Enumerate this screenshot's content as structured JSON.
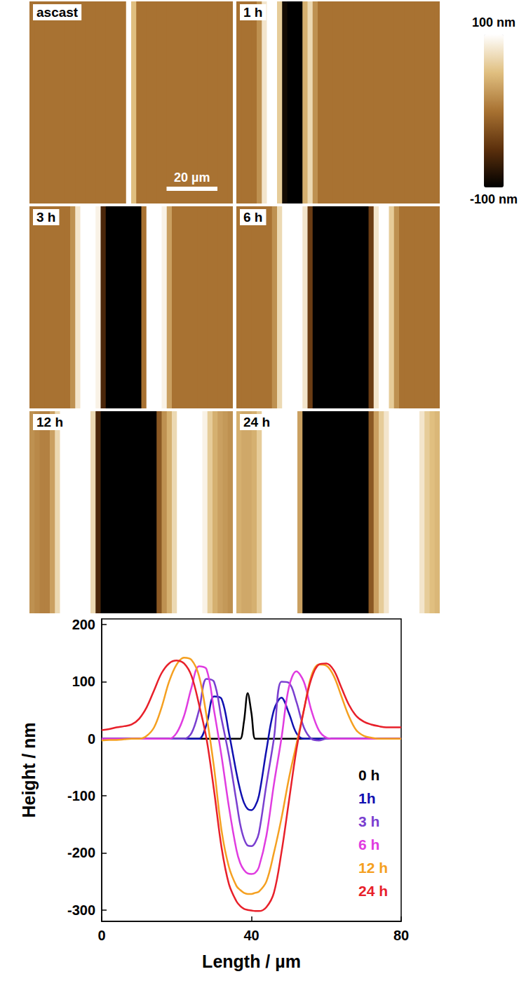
{
  "colorbar": {
    "range": [
      -100,
      100
    ],
    "ticks": [
      {
        "value": -100,
        "label": "-100 nm"
      },
      {
        "value": 100,
        "label": "100 nm"
      }
    ]
  },
  "chart_data": [
    {
      "type": "heatmap",
      "title": "ascast",
      "tick_labels": false,
      "xlim": [
        0,
        80
      ],
      "scale_bar": {
        "length": 20,
        "label": "20 µm"
      },
      "x": [
        1,
        3,
        5,
        7,
        9,
        11,
        13,
        15,
        17,
        19,
        21,
        23,
        25,
        27,
        29,
        31,
        33,
        35,
        37,
        39,
        41,
        43,
        45,
        47,
        49,
        51,
        53,
        55,
        57,
        59,
        61,
        63,
        65,
        67,
        69,
        71,
        73,
        75,
        77,
        79
      ],
      "values": [
        0,
        0,
        0,
        0,
        0,
        0,
        0,
        0,
        0,
        0,
        0,
        0,
        0,
        0,
        0,
        0,
        0,
        0,
        0,
        110,
        50,
        0,
        0,
        0,
        0,
        0,
        0,
        0,
        0,
        0,
        0,
        0,
        0,
        0,
        0,
        0,
        0,
        0,
        0,
        0
      ]
    },
    {
      "type": "heatmap",
      "title": "1 h",
      "tick_labels": false,
      "xlim": [
        0,
        80
      ],
      "x": [
        1,
        3,
        5,
        7,
        9,
        11,
        13,
        15,
        17,
        19,
        21,
        23,
        25,
        27,
        29,
        31,
        33,
        35,
        37,
        39,
        41,
        43,
        45,
        47,
        49,
        51,
        53,
        55,
        57,
        59,
        61,
        63,
        65,
        67,
        69,
        71,
        73,
        75,
        77,
        79
      ],
      "values": [
        0,
        0,
        0,
        0,
        20,
        80,
        100,
        100,
        60,
        -90,
        -125,
        -125,
        -100,
        40,
        70,
        20,
        0,
        0,
        0,
        0,
        0,
        0,
        0,
        0,
        0,
        0,
        0,
        0,
        0,
        0,
        0,
        0,
        0,
        0,
        0,
        0,
        0,
        0,
        0,
        0
      ]
    },
    {
      "type": "heatmap",
      "title": "3 h",
      "tick_labels": false,
      "xlim": [
        0,
        80
      ],
      "x": [
        1,
        3,
        5,
        7,
        9,
        11,
        13,
        15,
        17,
        19,
        21,
        23,
        25,
        27,
        29,
        31,
        33,
        35,
        37,
        39,
        41,
        43,
        45,
        47,
        49,
        51,
        53,
        55,
        57,
        59,
        61,
        63,
        65,
        67,
        69,
        71,
        73,
        75,
        77,
        79
      ],
      "values": [
        0,
        0,
        0,
        0,
        0,
        0,
        0,
        0,
        20,
        80,
        110,
        110,
        110,
        90,
        -60,
        -170,
        -190,
        -190,
        -190,
        -180,
        -170,
        -120,
        0,
        100,
        110,
        110,
        90,
        30,
        0,
        0,
        0,
        0,
        0,
        0,
        0,
        0,
        0,
        0,
        0,
        0
      ]
    },
    {
      "type": "heatmap",
      "title": "6 h",
      "tick_labels": false,
      "xlim": [
        0,
        80
      ],
      "x": [
        1,
        3,
        5,
        7,
        9,
        11,
        13,
        15,
        17,
        19,
        21,
        23,
        25,
        27,
        29,
        31,
        33,
        35,
        37,
        39,
        41,
        43,
        45,
        47,
        49,
        51,
        53,
        55,
        57,
        59,
        61,
        63,
        65,
        67,
        69,
        71,
        73,
        75,
        77,
        79
      ],
      "values": [
        0,
        0,
        0,
        0,
        0,
        0,
        0,
        20,
        70,
        110,
        125,
        125,
        120,
        80,
        -40,
        -150,
        -220,
        -235,
        -235,
        -235,
        -235,
        -235,
        -235,
        -235,
        -220,
        -150,
        -40,
        80,
        115,
        110,
        60,
        20,
        0,
        0,
        0,
        0,
        0,
        0,
        0,
        0
      ]
    },
    {
      "type": "heatmap",
      "title": "12 h",
      "tick_labels": false,
      "xlim": [
        0,
        80
      ],
      "x": [
        1,
        3,
        5,
        7,
        9,
        11,
        13,
        15,
        17,
        19,
        21,
        23,
        25,
        27,
        29,
        31,
        33,
        35,
        37,
        39,
        41,
        43,
        45,
        47,
        49,
        51,
        53,
        55,
        57,
        59,
        61,
        63,
        65,
        67,
        69,
        71,
        73,
        75,
        77,
        79
      ],
      "values": [
        20,
        15,
        10,
        10,
        30,
        70,
        110,
        140,
        140,
        140,
        135,
        120,
        70,
        -60,
        -200,
        -260,
        -270,
        -270,
        -270,
        -270,
        -270,
        -270,
        -270,
        -240,
        -120,
        -20,
        20,
        40,
        70,
        110,
        130,
        130,
        125,
        110,
        90,
        60,
        40,
        30,
        25,
        20
      ]
    },
    {
      "type": "heatmap",
      "title": "24 h",
      "tick_labels": false,
      "xlim": [
        0,
        80
      ],
      "x": [
        1,
        3,
        5,
        7,
        9,
        11,
        13,
        15,
        17,
        19,
        21,
        23,
        25,
        27,
        29,
        31,
        33,
        35,
        37,
        39,
        41,
        43,
        45,
        47,
        49,
        51,
        53,
        55,
        57,
        59,
        61,
        63,
        65,
        67,
        69,
        71,
        73,
        75,
        77,
        79
      ],
      "values": [
        40,
        35,
        35,
        40,
        60,
        100,
        135,
        140,
        140,
        140,
        135,
        110,
        30,
        -120,
        -260,
        -300,
        -300,
        -300,
        -300,
        -300,
        -300,
        -300,
        -300,
        -300,
        -250,
        -120,
        -20,
        30,
        60,
        80,
        100,
        120,
        135,
        135,
        130,
        110,
        80,
        60,
        50,
        45
      ]
    },
    {
      "type": "line",
      "xlabel": "Length / µm",
      "ylabel": "Height / nm",
      "xlim": [
        0,
        80
      ],
      "xticks": [
        0,
        40,
        80
      ],
      "ylim": [
        -320,
        210
      ],
      "yticks": [
        -300,
        -200,
        -100,
        0,
        100,
        200
      ],
      "grid": false,
      "legend": "lower right",
      "x": [
        0,
        2,
        4,
        6,
        8,
        10,
        12,
        14,
        16,
        18,
        20,
        22,
        24,
        26,
        28,
        30,
        32,
        34,
        36,
        37,
        38,
        39,
        40,
        41,
        42,
        44,
        46,
        48,
        50,
        52,
        54,
        56,
        58,
        60,
        62,
        64,
        66,
        68,
        70,
        72,
        74,
        76,
        78,
        80
      ],
      "series": [
        {
          "name": "0 h",
          "color": "#000000",
          "values": [
            0,
            0,
            0,
            0,
            0,
            0,
            0,
            0,
            0,
            0,
            0,
            0,
            0,
            0,
            0,
            0,
            0,
            0,
            0,
            0,
            30,
            80,
            45,
            0,
            0,
            0,
            0,
            0,
            0,
            0,
            0,
            0,
            0,
            0,
            0,
            0,
            0,
            0,
            0,
            0,
            0,
            0,
            0,
            0
          ]
        },
        {
          "name": "1h",
          "color": "#1010b0",
          "values": [
            0,
            0,
            0,
            0,
            0,
            0,
            0,
            0,
            0,
            0,
            0,
            0,
            0,
            0,
            25,
            74,
            70,
            10,
            -60,
            -90,
            -112,
            -123,
            -125,
            -118,
            -100,
            -20,
            50,
            72,
            45,
            10,
            0,
            0,
            0,
            0,
            0,
            0,
            0,
            0,
            0,
            0,
            0,
            0,
            0,
            0
          ]
        },
        {
          "name": "3 h",
          "color": "#7a3fd0",
          "values": [
            0,
            0,
            0,
            0,
            0,
            0,
            0,
            0,
            0,
            0,
            0,
            0,
            10,
            50,
            105,
            100,
            35,
            -30,
            -110,
            -150,
            -175,
            -187,
            -188,
            -182,
            -165,
            -80,
            0,
            100,
            98,
            65,
            20,
            0,
            -3,
            0,
            0,
            0,
            0,
            0,
            0,
            0,
            0,
            0,
            0,
            0
          ]
        },
        {
          "name": "6 h",
          "color": "#e03ce0",
          "values": [
            0,
            0,
            0,
            0,
            0,
            0,
            0,
            0,
            0,
            0,
            10,
            40,
            90,
            127,
            122,
            50,
            -30,
            -120,
            -195,
            -218,
            -230,
            -236,
            -237,
            -235,
            -225,
            -170,
            -80,
            0,
            90,
            118,
            100,
            50,
            15,
            2,
            0,
            0,
            0,
            0,
            0,
            0,
            0,
            0,
            0,
            0
          ]
        },
        {
          "name": "12 h",
          "color": "#f5a020",
          "values": [
            -3,
            -2,
            -2,
            -1,
            0,
            0,
            5,
            20,
            55,
            100,
            130,
            142,
            138,
            110,
            40,
            -50,
            -160,
            -225,
            -258,
            -265,
            -270,
            -272,
            -272,
            -270,
            -268,
            -250,
            -200,
            -140,
            -70,
            -10,
            50,
            110,
            130,
            128,
            110,
            75,
            40,
            15,
            5,
            2,
            0,
            0,
            0,
            0
          ]
        },
        {
          "name": "24 h",
          "color": "#e8202a",
          "values": [
            15,
            17,
            20,
            22,
            25,
            35,
            55,
            85,
            115,
            132,
            137,
            132,
            110,
            60,
            0,
            -90,
            -190,
            -255,
            -285,
            -293,
            -298,
            -300,
            -301,
            -302,
            -302,
            -295,
            -270,
            -200,
            -110,
            -20,
            50,
            105,
            130,
            132,
            120,
            90,
            60,
            40,
            30,
            25,
            22,
            20,
            20,
            20
          ]
        }
      ]
    }
  ]
}
